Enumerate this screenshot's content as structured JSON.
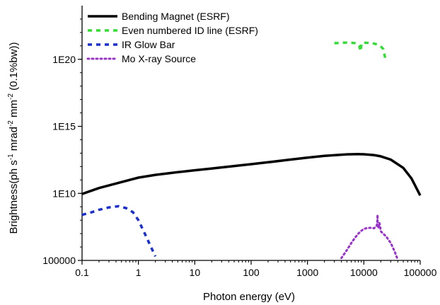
{
  "chart_data": {
    "type": "line",
    "x_scale": "log",
    "y_scale": "log",
    "xlabel": "Photon energy (eV)",
    "ylabel_parts": [
      "Brightness(ph s",
      "-1",
      " mrad",
      "-2",
      " mm",
      "-2",
      " (0.1%bw))"
    ],
    "xlim": [
      0.1,
      100000
    ],
    "ylim": [
      100000,
      1e+24
    ],
    "x_ticks": [
      {
        "value": 0.1,
        "label": "0.1"
      },
      {
        "value": 1,
        "label": "1"
      },
      {
        "value": 10,
        "label": "10"
      },
      {
        "value": 100,
        "label": "100"
      },
      {
        "value": 1000,
        "label": "1000"
      },
      {
        "value": 10000,
        "label": "10000"
      },
      {
        "value": 100000,
        "label": "100000"
      }
    ],
    "y_ticks": [
      {
        "value": 100000,
        "label": "100000"
      },
      {
        "value": 10000000000.0,
        "label": "1E10"
      },
      {
        "value": 1000000000000000.0,
        "label": "1E15"
      },
      {
        "value": 1e+20,
        "label": "1E20"
      }
    ],
    "legend_position": "top-left",
    "series": [
      {
        "name": "Bending Magnet (ESRF)",
        "color": "#000000",
        "style": "solid",
        "x": [
          0.1,
          0.2,
          0.5,
          1,
          2,
          5,
          10,
          20,
          50,
          100,
          200,
          500,
          1000,
          2000,
          5000,
          8000,
          10000,
          15000,
          20000,
          30000,
          50000,
          70000,
          100000
        ],
        "y": [
          9000000000.0,
          25000000000.0,
          70000000000.0,
          150000000000.0,
          240000000000.0,
          380000000000.0,
          530000000000.0,
          720000000000.0,
          1100000000000.0,
          1500000000000.0,
          2100000000000.0,
          3300000000000.0,
          4600000000000.0,
          6300000000000.0,
          8200000000000.0,
          8500000000000.0,
          8300000000000.0,
          7200000000000.0,
          5800000000000.0,
          3300000000000.0,
          800000000000.0,
          130000000000.0,
          7000000000.0
        ]
      },
      {
        "name": "Even numbered ID line (ESRF)",
        "color": "#33dd33",
        "style": "dash",
        "x": [
          3000,
          4000,
          5000,
          6000,
          7000,
          7800,
          8300,
          8800,
          9100,
          9400,
          10000,
          11000,
          12000,
          14000,
          16000,
          18000,
          20000,
          22000,
          24000
        ],
        "y": [
          1.6e+21,
          1.7e+21,
          1.75e+21,
          1.72e+21,
          1.6e+21,
          1.4e+21,
          1e+21,
          4e+20,
          1.6e+21,
          1.7e+21,
          1.72e+21,
          1.7e+21,
          1.68e+21,
          1.6e+21,
          1.4e+21,
          1.2e+21,
          9e+20,
          6e+20,
          1.2e+20
        ]
      },
      {
        "name": "IR Glow Bar",
        "color": "#1a2fcc",
        "style": "dash",
        "x": [
          0.1,
          0.15,
          0.2,
          0.3,
          0.45,
          0.6,
          0.8,
          1.0,
          1.3,
          1.6,
          2.0
        ],
        "y": [
          250000000.0,
          400000000.0,
          600000000.0,
          900000000.0,
          1100000000.0,
          800000000.0,
          400000000.0,
          100000000.0,
          10000000.0,
          1500000.0,
          200000.0
        ]
      },
      {
        "name": "Mo X-ray Source",
        "color": "#9933cc",
        "style": "dot",
        "x": [
          4000,
          5000,
          6000,
          7000,
          8000,
          9000,
          10000,
          11000,
          12000,
          13000,
          14000,
          15000,
          16000,
          17000,
          17400,
          17480,
          17600,
          18000,
          19000,
          19600,
          20000,
          22000,
          25000,
          30000,
          35000,
          38000,
          40000
        ],
        "y": [
          150000.0,
          600000.0,
          2000000.0,
          5000000.0,
          10000000.0,
          16000000.0,
          22000000.0,
          25000000.0,
          26000000.0,
          27000000.0,
          26000000.0,
          25000000.0,
          30000000.0,
          40000000.0,
          100000000.0,
          250000000.0,
          60000000.0,
          25000000.0,
          60000000.0,
          28000000.0,
          15000000.0,
          10000000.0,
          6000000.0,
          2000000.0,
          500000.0,
          200000.0,
          110000.0
        ]
      }
    ]
  }
}
